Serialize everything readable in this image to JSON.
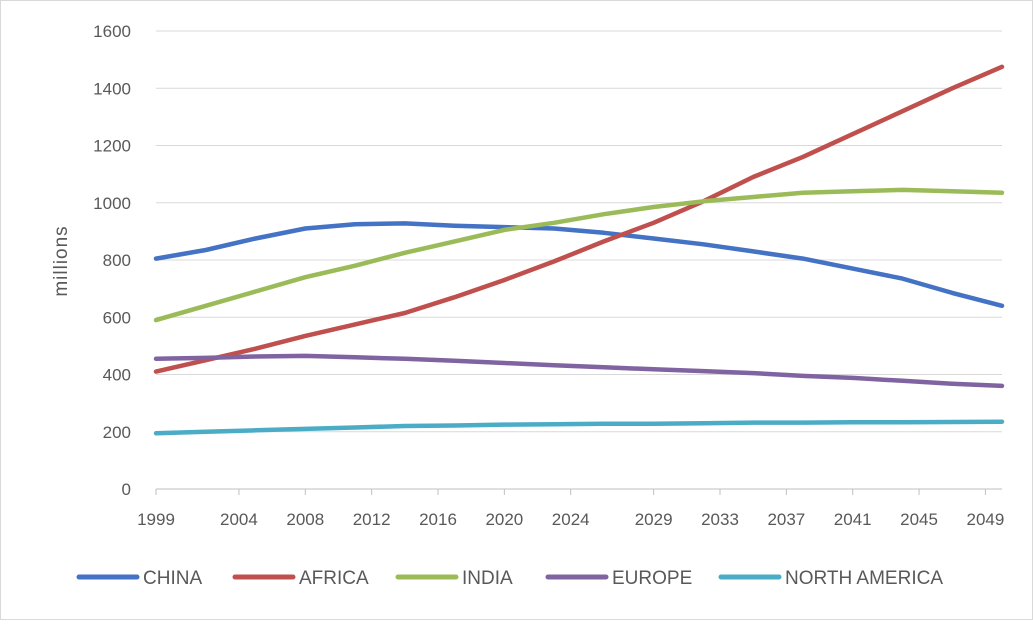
{
  "chart_data": {
    "type": "line",
    "title": "",
    "xlabel": "",
    "ylabel": "millions",
    "ylim": [
      0,
      1600
    ],
    "yticks": [
      0,
      200,
      400,
      600,
      800,
      1000,
      1200,
      1400,
      1600
    ],
    "xlim": [
      1999,
      2050
    ],
    "xticks": [
      "1999",
      "2004",
      "2008",
      "2012",
      "2016",
      "2020",
      "2024",
      "2029",
      "2033",
      "2037",
      "2041",
      "2045",
      "2049"
    ],
    "grid": "horizontal",
    "legend": "bottom",
    "x": [
      1999,
      2002,
      2005,
      2008,
      2011,
      2014,
      2017,
      2020,
      2023,
      2026,
      2029,
      2032,
      2035,
      2038,
      2041,
      2044,
      2047,
      2050
    ],
    "series": [
      {
        "name": "CHINA",
        "color": "#4472c4",
        "values": [
          805,
          835,
          875,
          910,
          925,
          928,
          920,
          915,
          910,
          895,
          875,
          855,
          830,
          805,
          770,
          735,
          685,
          640
        ]
      },
      {
        "name": "AFRICA",
        "color": "#c0504d",
        "values": [
          410,
          450,
          490,
          535,
          575,
          615,
          670,
          730,
          795,
          865,
          930,
          1005,
          1090,
          1160,
          1240,
          1320,
          1400,
          1475
        ]
      },
      {
        "name": "INDIA",
        "color": "#9bbb59",
        "values": [
          590,
          640,
          690,
          740,
          780,
          825,
          865,
          905,
          930,
          960,
          985,
          1005,
          1020,
          1035,
          1040,
          1045,
          1040,
          1035
        ]
      },
      {
        "name": "EUROPE",
        "color": "#8064a2",
        "values": [
          455,
          458,
          463,
          465,
          460,
          455,
          448,
          440,
          432,
          425,
          418,
          412,
          405,
          395,
          388,
          378,
          368,
          360
        ]
      },
      {
        "name": "NORTH AMERICA",
        "color": "#4bacc6",
        "values": [
          195,
          200,
          205,
          210,
          215,
          220,
          222,
          225,
          226,
          228,
          228,
          230,
          232,
          232,
          233,
          233,
          234,
          235
        ]
      }
    ]
  }
}
